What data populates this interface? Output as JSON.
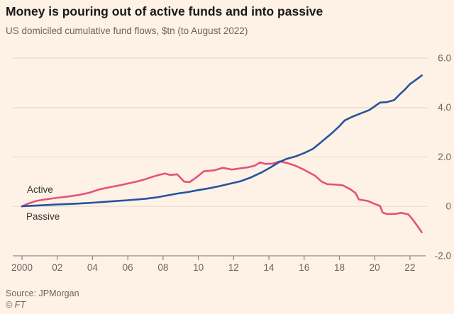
{
  "header": {
    "title": "Money is pouring out of active funds and into passive",
    "subtitle": "US domiciled cumulative fund flows, $tn (to August 2022)"
  },
  "footer": {
    "source": "Source: JPMorgan",
    "copyright": "© FT"
  },
  "colors": {
    "background": "#fef1e5",
    "active_line": "#e5527b",
    "passive_line": "#24549e",
    "gridline": "#e9dccf",
    "axis": "#8c8680",
    "axis_text": "#6b6560",
    "title_text": "#1a1817",
    "label_text": "#3a3632"
  },
  "chart_data": {
    "type": "line",
    "title": "Money is pouring out of active funds and into passive",
    "subtitle": "US domiciled cumulative fund flows, $tn (to August 2022)",
    "unit": "$tn",
    "grid": "horizontal",
    "legend_position": "inline-left",
    "x_axis": {
      "range": [
        2000,
        2022.9
      ],
      "ticks": [
        {
          "year": 2000,
          "label": "2000"
        },
        {
          "year": 2002,
          "label": "02"
        },
        {
          "year": 2004,
          "label": "04"
        },
        {
          "year": 2006,
          "label": "06"
        },
        {
          "year": 2008,
          "label": "08"
        },
        {
          "year": 2010,
          "label": "10"
        },
        {
          "year": 2012,
          "label": "12"
        },
        {
          "year": 2014,
          "label": "14"
        },
        {
          "year": 2016,
          "label": "16"
        },
        {
          "year": 2018,
          "label": "18"
        },
        {
          "year": 2020,
          "label": "20"
        },
        {
          "year": 2022,
          "label": "22"
        }
      ]
    },
    "y_axis": {
      "range": [
        -2.0,
        6.0
      ],
      "gridline_values": [
        6,
        4,
        2,
        0
      ],
      "axis_line_value": -2,
      "ticks": [
        {
          "value": 6,
          "label": "6.0"
        },
        {
          "value": 4,
          "label": "4.0"
        },
        {
          "value": 2,
          "label": "2.0"
        },
        {
          "value": 0,
          "label": "0"
        },
        {
          "value": -2,
          "label": "-2.0"
        }
      ]
    },
    "series": [
      {
        "name": "Active",
        "color": "#e5527b",
        "points": [
          [
            2000.0,
            0.0
          ],
          [
            2000.3,
            0.1
          ],
          [
            2000.8,
            0.22
          ],
          [
            2001.3,
            0.28
          ],
          [
            2002.0,
            0.35
          ],
          [
            2002.6,
            0.4
          ],
          [
            2003.2,
            0.46
          ],
          [
            2003.8,
            0.55
          ],
          [
            2004.4,
            0.69
          ],
          [
            2005.0,
            0.78
          ],
          [
            2005.6,
            0.86
          ],
          [
            2006.1,
            0.94
          ],
          [
            2006.6,
            1.02
          ],
          [
            2007.0,
            1.1
          ],
          [
            2007.4,
            1.2
          ],
          [
            2007.8,
            1.28
          ],
          [
            2008.1,
            1.33
          ],
          [
            2008.4,
            1.27
          ],
          [
            2008.8,
            1.3
          ],
          [
            2009.0,
            1.15
          ],
          [
            2009.2,
            1.0
          ],
          [
            2009.5,
            0.98
          ],
          [
            2009.9,
            1.18
          ],
          [
            2010.3,
            1.42
          ],
          [
            2010.9,
            1.46
          ],
          [
            2011.4,
            1.56
          ],
          [
            2011.9,
            1.49
          ],
          [
            2012.3,
            1.53
          ],
          [
            2012.8,
            1.58
          ],
          [
            2013.2,
            1.65
          ],
          [
            2013.5,
            1.78
          ],
          [
            2013.8,
            1.72
          ],
          [
            2014.2,
            1.73
          ],
          [
            2014.6,
            1.82
          ],
          [
            2015.0,
            1.76
          ],
          [
            2015.5,
            1.65
          ],
          [
            2016.0,
            1.48
          ],
          [
            2016.6,
            1.25
          ],
          [
            2017.0,
            1.0
          ],
          [
            2017.3,
            0.9
          ],
          [
            2017.8,
            0.88
          ],
          [
            2018.2,
            0.85
          ],
          [
            2018.6,
            0.7
          ],
          [
            2018.9,
            0.55
          ],
          [
            2019.1,
            0.28
          ],
          [
            2019.6,
            0.22
          ],
          [
            2020.0,
            0.1
          ],
          [
            2020.3,
            0.02
          ],
          [
            2020.45,
            -0.25
          ],
          [
            2020.7,
            -0.31
          ],
          [
            2021.2,
            -0.3
          ],
          [
            2021.5,
            -0.26
          ],
          [
            2021.9,
            -0.32
          ],
          [
            2022.1,
            -0.48
          ],
          [
            2022.35,
            -0.72
          ],
          [
            2022.55,
            -0.92
          ],
          [
            2022.67,
            -1.05
          ]
        ]
      },
      {
        "name": "Passive",
        "color": "#24549e",
        "points": [
          [
            2000.0,
            0.01
          ],
          [
            2001.0,
            0.04
          ],
          [
            2002.0,
            0.08
          ],
          [
            2003.0,
            0.11
          ],
          [
            2004.0,
            0.15
          ],
          [
            2005.0,
            0.2
          ],
          [
            2006.0,
            0.25
          ],
          [
            2007.0,
            0.31
          ],
          [
            2007.6,
            0.36
          ],
          [
            2008.2,
            0.44
          ],
          [
            2008.8,
            0.52
          ],
          [
            2009.4,
            0.58
          ],
          [
            2010.0,
            0.66
          ],
          [
            2010.6,
            0.73
          ],
          [
            2011.2,
            0.82
          ],
          [
            2011.8,
            0.92
          ],
          [
            2012.4,
            1.02
          ],
          [
            2013.0,
            1.18
          ],
          [
            2013.6,
            1.38
          ],
          [
            2014.1,
            1.58
          ],
          [
            2014.6,
            1.8
          ],
          [
            2015.0,
            1.92
          ],
          [
            2015.5,
            2.02
          ],
          [
            2016.0,
            2.16
          ],
          [
            2016.5,
            2.33
          ],
          [
            2017.0,
            2.62
          ],
          [
            2017.5,
            2.92
          ],
          [
            2018.0,
            3.25
          ],
          [
            2018.3,
            3.48
          ],
          [
            2018.7,
            3.62
          ],
          [
            2019.2,
            3.76
          ],
          [
            2019.7,
            3.9
          ],
          [
            2020.0,
            4.05
          ],
          [
            2020.3,
            4.2
          ],
          [
            2020.7,
            4.22
          ],
          [
            2021.1,
            4.3
          ],
          [
            2021.4,
            4.52
          ],
          [
            2021.7,
            4.72
          ],
          [
            2022.0,
            4.95
          ],
          [
            2022.2,
            5.05
          ],
          [
            2022.45,
            5.18
          ],
          [
            2022.67,
            5.3
          ]
        ]
      }
    ]
  }
}
